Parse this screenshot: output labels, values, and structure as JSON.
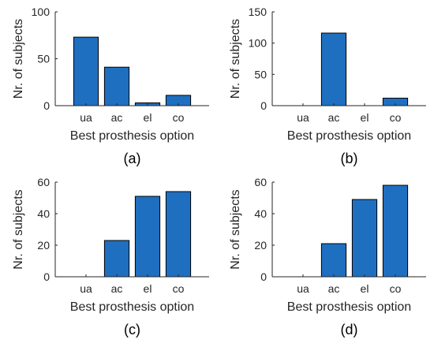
{
  "chart_data": [
    {
      "type": "bar",
      "panel_label": "(a)",
      "categories": [
        "ua",
        "ac",
        "el",
        "co"
      ],
      "values": [
        73,
        41,
        3,
        11
      ],
      "xlabel": "Best prosthesis option",
      "ylabel": "Nr. of subjects",
      "ylim": [
        0,
        100
      ],
      "yticks": [
        0,
        50,
        100
      ],
      "grid": false,
      "bar_color": "#1f6fc0"
    },
    {
      "type": "bar",
      "panel_label": "(b)",
      "categories": [
        "ua",
        "ac",
        "el",
        "co"
      ],
      "values": [
        0,
        116,
        0,
        12
      ],
      "xlabel": "Best prosthesis option",
      "ylabel": "Nr. of subjects",
      "ylim": [
        0,
        150
      ],
      "yticks": [
        0,
        50,
        100,
        150
      ],
      "grid": false,
      "bar_color": "#1f6fc0"
    },
    {
      "type": "bar",
      "panel_label": "(c)",
      "categories": [
        "ua",
        "ac",
        "el",
        "co"
      ],
      "values": [
        0,
        23,
        51,
        54
      ],
      "xlabel": "Best prosthesis option",
      "ylabel": "Nr. of subjects",
      "ylim": [
        0,
        60
      ],
      "yticks": [
        0,
        20,
        40,
        60
      ],
      "grid": false,
      "bar_color": "#1f6fc0"
    },
    {
      "type": "bar",
      "panel_label": "(d)",
      "categories": [
        "ua",
        "ac",
        "el",
        "co"
      ],
      "values": [
        0,
        21,
        49,
        58
      ],
      "xlabel": "Best prosthesis option",
      "ylabel": "Nr. of subjects",
      "ylim": [
        0,
        60
      ],
      "yticks": [
        0,
        20,
        40,
        60
      ],
      "grid": false,
      "bar_color": "#1f6fc0"
    }
  ]
}
